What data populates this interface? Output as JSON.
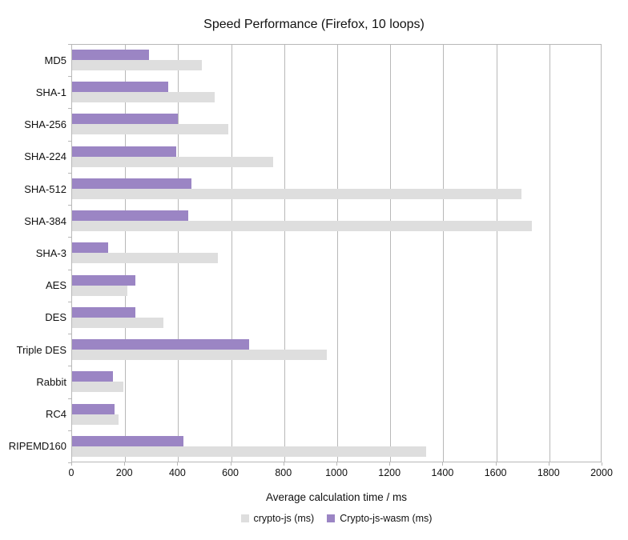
{
  "title": "Speed Performance (Firefox, 10 loops)",
  "xlabel": "Average calculation time / ms",
  "colors": {
    "crypto_js": "#dedede",
    "crypto_js_wasm": "#9b85c4",
    "gridline": "#b8b8b8",
    "text": "#111111",
    "background": "#ffffff"
  },
  "legend": {
    "items": [
      {
        "label": "crypto-js (ms)",
        "color": "#dedede"
      },
      {
        "label": "Crypto-js-wasm (ms)",
        "color": "#9b85c4"
      }
    ]
  },
  "chart_data": {
    "type": "bar",
    "orientation": "horizontal",
    "title": "Speed Performance (Firefox, 10 loops)",
    "xlabel": "Average calculation time / ms",
    "ylabel": "",
    "categories": [
      "MD5",
      "SHA-1",
      "SHA-256",
      "SHA-224",
      "SHA-512",
      "SHA-384",
      "SHA-3",
      "AES",
      "DES",
      "Triple DES",
      "Rabbit",
      "RC4",
      "RIPEMD160"
    ],
    "series": [
      {
        "name": "crypto-js (ms)",
        "color": "#dedede",
        "values": [
          490,
          540,
          590,
          760,
          1700,
          1740,
          550,
          210,
          345,
          965,
          195,
          175,
          1340
        ]
      },
      {
        "name": "Crypto-js-wasm (ms)",
        "color": "#9b85c4",
        "values": [
          290,
          365,
          400,
          395,
          450,
          440,
          135,
          240,
          240,
          670,
          155,
          160,
          420
        ]
      }
    ],
    "xlim": [
      0,
      2000
    ],
    "xticks": [
      0,
      200,
      400,
      600,
      800,
      1000,
      1200,
      1400,
      1600,
      1800,
      2000
    ],
    "grid": true,
    "legend_position": "bottom"
  }
}
